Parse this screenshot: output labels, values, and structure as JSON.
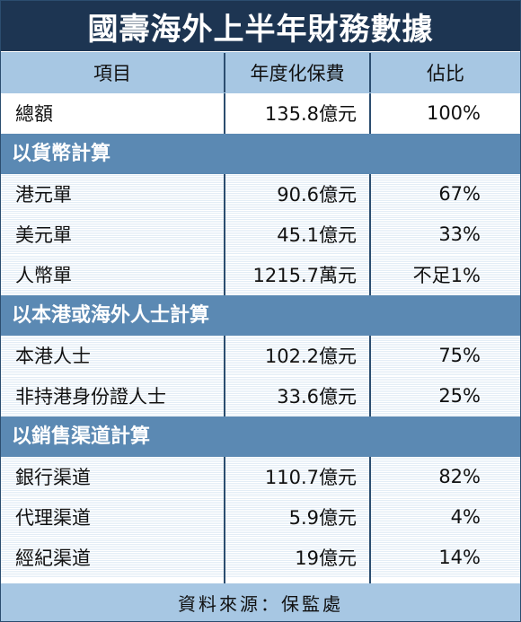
{
  "title": "國壽海外上半年財務數據",
  "header": {
    "col1": "項目",
    "col2": "年度化保費",
    "col3": "佔比"
  },
  "total": {
    "label": "總額",
    "amount": "135.8億元",
    "share": "100%"
  },
  "sections": [
    {
      "title": "以貨幣計算",
      "rows": [
        {
          "label": "港元單",
          "amount": "90.6億元",
          "share": "67%"
        },
        {
          "label": "美元單",
          "amount": "45.1億元",
          "share": "33%"
        },
        {
          "label": "人幣單",
          "amount": "1215.7萬元",
          "share": "不足1%"
        }
      ]
    },
    {
      "title": "以本港或海外人士計算",
      "rows": [
        {
          "label": "本港人士",
          "amount": "102.2億元",
          "share": "75%"
        },
        {
          "label": "非持港身份證人士",
          "amount": "33.6億元",
          "share": "25%"
        }
      ]
    },
    {
      "title": "以銷售渠道計算",
      "rows": [
        {
          "label": "銀行渠道",
          "amount": "110.7億元",
          "share": "82%"
        },
        {
          "label": "代理渠道",
          "amount": "5.9億元",
          "share": "4%"
        },
        {
          "label": "經紀渠道",
          "amount": "19億元",
          "share": "14%"
        }
      ]
    }
  ],
  "footer": "資料來源：保監處",
  "colors": {
    "title_bg": "#1d3552",
    "header_bg": "#a7c7e3",
    "section_bg": "#5b89b3",
    "row_alt_bg": "#e3edf6"
  }
}
